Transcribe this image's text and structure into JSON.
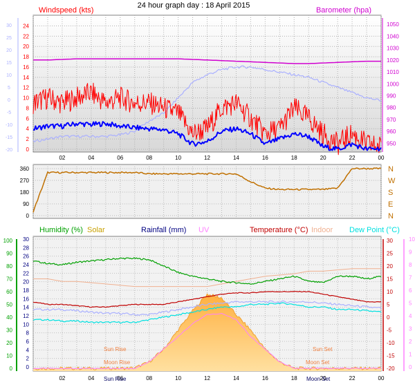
{
  "title": "24 hour graph day : 18 April 2015",
  "colors": {
    "wind": "#ff0000",
    "wind_avg": "#0000ff",
    "baro": "#d000d0",
    "temp_proxy": "#aab0ff",
    "direction": "#c07000",
    "humidity": "#00a000",
    "solar": "#c8a000",
    "rain": "#000080",
    "uv": "#ff80ff",
    "temperature": "#c00000",
    "indoor": "#f0b090",
    "dewpoint": "#00e0e0",
    "sun_fill": "#ffc050"
  },
  "chart_data": [
    {
      "type": "line",
      "title": "",
      "legend": [
        "Windspeed (kts)",
        "Barometer (hpa)"
      ],
      "x_label": "",
      "x_ticks": [
        "02",
        "04",
        "06",
        "08",
        "10",
        "12",
        "14",
        "16",
        "18",
        "20",
        "22",
        "00"
      ],
      "y_left_outer_ticks": [
        "30",
        "25",
        "20",
        "15",
        "10",
        "5",
        "0",
        "-5",
        "-10",
        "-15",
        "-20"
      ],
      "y_left_ticks": [
        "24",
        "22",
        "20",
        "18",
        "16",
        "14",
        "12",
        "10",
        "8",
        "6",
        "4",
        "2",
        "0"
      ],
      "y_right_ticks": [
        "1050",
        "1040",
        "1030",
        "1020",
        "1010",
        "1000",
        "990",
        "980",
        "970",
        "960",
        "950"
      ],
      "ylim_left": [
        0,
        25
      ],
      "ylim_right": [
        945,
        1053
      ],
      "hours": [
        0,
        1,
        2,
        3,
        4,
        5,
        6,
        7,
        8,
        9,
        10,
        11,
        12,
        13,
        14,
        15,
        16,
        17,
        18,
        19,
        20,
        21,
        22,
        23,
        24
      ],
      "series": [
        {
          "name": "Windspeed (kts)",
          "values": [
            9,
            10,
            9,
            10,
            11,
            9,
            10,
            9,
            9,
            8,
            7,
            3,
            4,
            8,
            9,
            6,
            3,
            4,
            8,
            6,
            3,
            1,
            3,
            1,
            0.5
          ]
        },
        {
          "name": "Barometer (hpa)",
          "values": [
            1020,
            1020,
            1020.5,
            1021,
            1021,
            1021,
            1021,
            1021,
            1021,
            1021,
            1021,
            1020.5,
            1020,
            1019.5,
            1019,
            1018.5,
            1018,
            1017.5,
            1017,
            1017,
            1017.5,
            1018,
            1018.5,
            1019,
            1019
          ]
        }
      ],
      "extra_series": [
        {
          "values": [
            4,
            4.5,
            4.5,
            5,
            4.8,
            5,
            4.5,
            4.2,
            4,
            3.8,
            3,
            1,
            1.5,
            3.5,
            4,
            3,
            1,
            2,
            3,
            2.5,
            0.5,
            0,
            1,
            0,
            0.2
          ]
        },
        {
          "values": [
            1.5,
            2,
            2.5,
            2.5,
            2.5,
            2.5,
            2.8,
            3.5,
            5.5,
            7,
            10,
            13,
            14.5,
            15.5,
            16,
            16,
            15.5,
            15,
            14.5,
            14,
            13,
            12,
            11,
            10,
            9.5
          ]
        }
      ]
    },
    {
      "type": "line",
      "title": "",
      "y_left_ticks": [
        "360",
        "270",
        "180",
        "90",
        "0"
      ],
      "y_right_ticks": [
        "N",
        "W",
        "S",
        "E",
        "N"
      ],
      "ylim": [
        0,
        360
      ],
      "hours": [
        0,
        1,
        2,
        3,
        4,
        5,
        6,
        7,
        8,
        9,
        10,
        11,
        12,
        13,
        14,
        15,
        16,
        17,
        18,
        19,
        20,
        21,
        22,
        23,
        24
      ],
      "values": [
        30,
        330,
        330,
        330,
        330,
        330,
        330,
        330,
        320,
        320,
        320,
        320,
        320,
        320,
        320,
        260,
        210,
        200,
        200,
        200,
        200,
        210,
        360,
        360,
        360
      ]
    },
    {
      "type": "line",
      "title": "",
      "legend": [
        "Humidity (%)",
        "Solar",
        "Rainfall (mm)",
        "UV",
        "Temperature (°C)",
        "Indoor",
        "Dew Point (°C)"
      ],
      "x_ticks": [
        "02",
        "04",
        "06",
        "08",
        "10",
        "12",
        "14",
        "16",
        "18",
        "20",
        "22",
        "00"
      ],
      "y_humidity_ticks": [
        "100",
        "90",
        "80",
        "70",
        "60",
        "50",
        "40",
        "30",
        "20",
        "10",
        "0"
      ],
      "y_left_ticks": [
        "30",
        "28",
        "26",
        "24",
        "22",
        "20",
        "18",
        "16",
        "14",
        "12",
        "10",
        "8",
        "6",
        "4",
        "2",
        "0"
      ],
      "y_right_ticks": [
        "30",
        "25",
        "20",
        "15",
        "10",
        "5",
        "0",
        "-5",
        "-10",
        "-15",
        "-20"
      ],
      "y_uv_ticks": [
        "10",
        "9",
        "8",
        "7",
        "6",
        "5",
        "4",
        "3",
        "2",
        "1",
        "0"
      ],
      "annotations": [
        "Sun Rise",
        "Moon Rise",
        "Sun Set",
        "Moon Set",
        "Sun Rise",
        "Moon Set"
      ],
      "hours": [
        0,
        1,
        2,
        3,
        4,
        5,
        6,
        7,
        8,
        9,
        10,
        11,
        12,
        13,
        14,
        15,
        16,
        17,
        18,
        19,
        20,
        21,
        22,
        23,
        24
      ],
      "series": [
        {
          "name": "Humidity (%)",
          "values": [
            84,
            82,
            81,
            83,
            84,
            85,
            86,
            86,
            85,
            80,
            75,
            72,
            70,
            68,
            67,
            66,
            68,
            70,
            72,
            68,
            67,
            72,
            72,
            70,
            72
          ]
        },
        {
          "name": "Temperature (°C)",
          "values": [
            6,
            5,
            5,
            4.5,
            4,
            4,
            4.5,
            5,
            5,
            5,
            6,
            7,
            8,
            9,
            9.5,
            9.5,
            10,
            10,
            10,
            10,
            9,
            8,
            7,
            6,
            6
          ]
        },
        {
          "name": "Indoor",
          "values": [
            15,
            15,
            14,
            14,
            13.5,
            13,
            12.5,
            12,
            12,
            12,
            12,
            12,
            12,
            13,
            14,
            15,
            16,
            16.5,
            17,
            18,
            18,
            18.5,
            19,
            19,
            19
          ]
        },
        {
          "name": "Dew Point (°C)",
          "values": [
            -1,
            -1,
            -1.5,
            -1.5,
            -2,
            -2,
            -2,
            -2,
            -1,
            0,
            1,
            2,
            3,
            4,
            4,
            5,
            5,
            5.5,
            5,
            4,
            4,
            3,
            3,
            2.5,
            2
          ]
        },
        {
          "name": "Solar",
          "values": [
            0,
            0,
            0,
            0,
            0,
            0,
            0,
            0.3,
            5,
            15,
            30,
            45,
            58,
            55,
            42,
            30,
            15,
            5,
            0,
            0,
            0,
            0,
            0,
            0,
            0
          ]
        },
        {
          "name": "UV",
          "values": [
            0,
            0,
            0,
            0,
            0,
            0,
            0,
            0,
            0.5,
            1.5,
            2.5,
            3.5,
            4.2,
            4.3,
            3.8,
            2.5,
            1.5,
            0.5,
            0,
            0,
            0,
            0,
            0,
            0,
            0
          ]
        }
      ],
      "extra_series": [
        {
          "values": [
            3,
            3,
            3,
            2.5,
            2,
            1.5,
            1.5,
            1,
            1,
            2,
            3,
            4,
            5,
            5.5,
            6,
            6,
            6,
            6,
            6,
            6,
            5.5,
            5,
            4.5,
            4,
            3.5
          ]
        }
      ]
    }
  ],
  "annotations_panel3": {
    "sun_rise": "Sun Rise",
    "moon_rise": "Moon Rise",
    "sun_set": "Sun Set",
    "moon_set": "Moon Set",
    "bottom_sun_rise": "Sun Rise",
    "bottom_moon_set": "Moon Set"
  }
}
